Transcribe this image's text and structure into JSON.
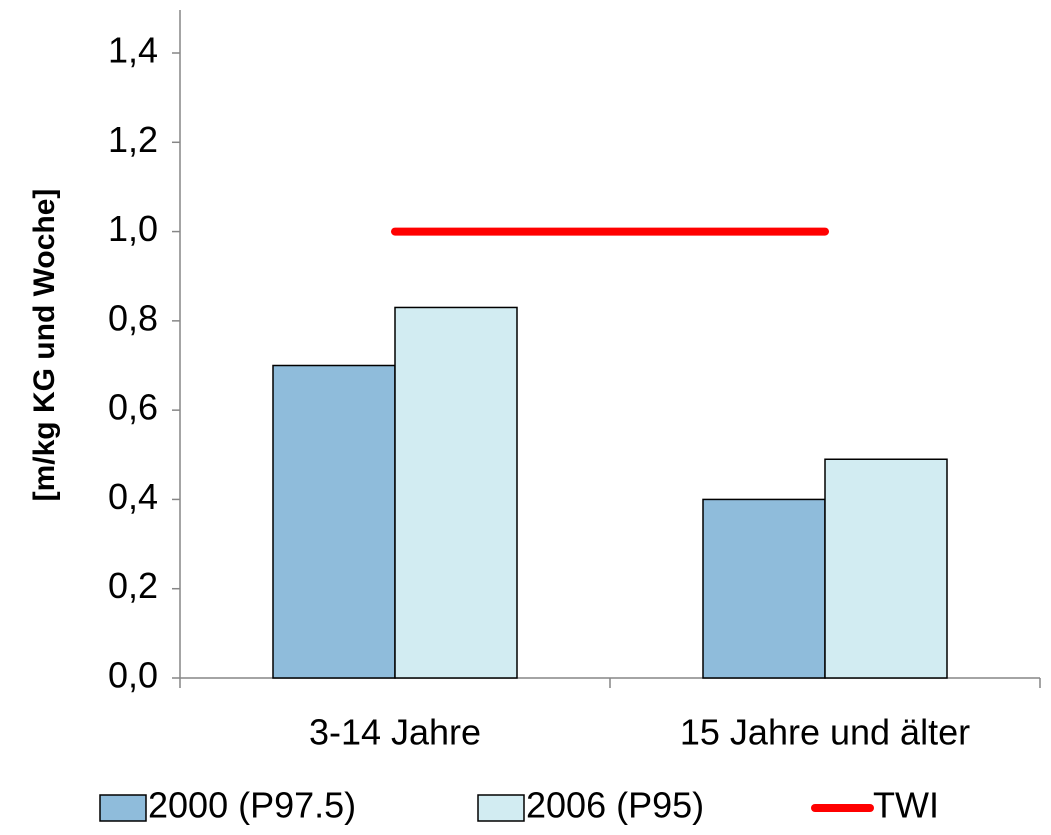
{
  "chart_data": {
    "type": "bar",
    "y_label": "[m/kg KG und Woche]",
    "categories": [
      "3-14 Jahre",
      "15 Jahre und älter"
    ],
    "series": [
      {
        "name": "2000 (P97.5)",
        "color": "#8fbcdb",
        "values": [
          0.7,
          0.4
        ]
      },
      {
        "name": "2006 (P95)",
        "color": "#d2ecf2",
        "values": [
          0.83,
          0.49
        ]
      },
      {
        "name": "TWI",
        "color": "#ff0000",
        "type": "line",
        "values": [
          1.0,
          1.0
        ]
      }
    ],
    "ylim": [
      0,
      1.4
    ],
    "yticks": [
      {
        "value": 0,
        "label": "0,0"
      },
      {
        "value": 0.2,
        "label": "0,2"
      },
      {
        "value": 0.4,
        "label": "0,4"
      },
      {
        "value": 0.6,
        "label": "0,6"
      },
      {
        "value": 0.8,
        "label": "0,8"
      },
      {
        "value": 1.0,
        "label": "1,0"
      },
      {
        "value": 1.2,
        "label": "1,2"
      },
      {
        "value": 1.4,
        "label": "1,4"
      }
    ],
    "grid": false,
    "legend": "bottom"
  }
}
